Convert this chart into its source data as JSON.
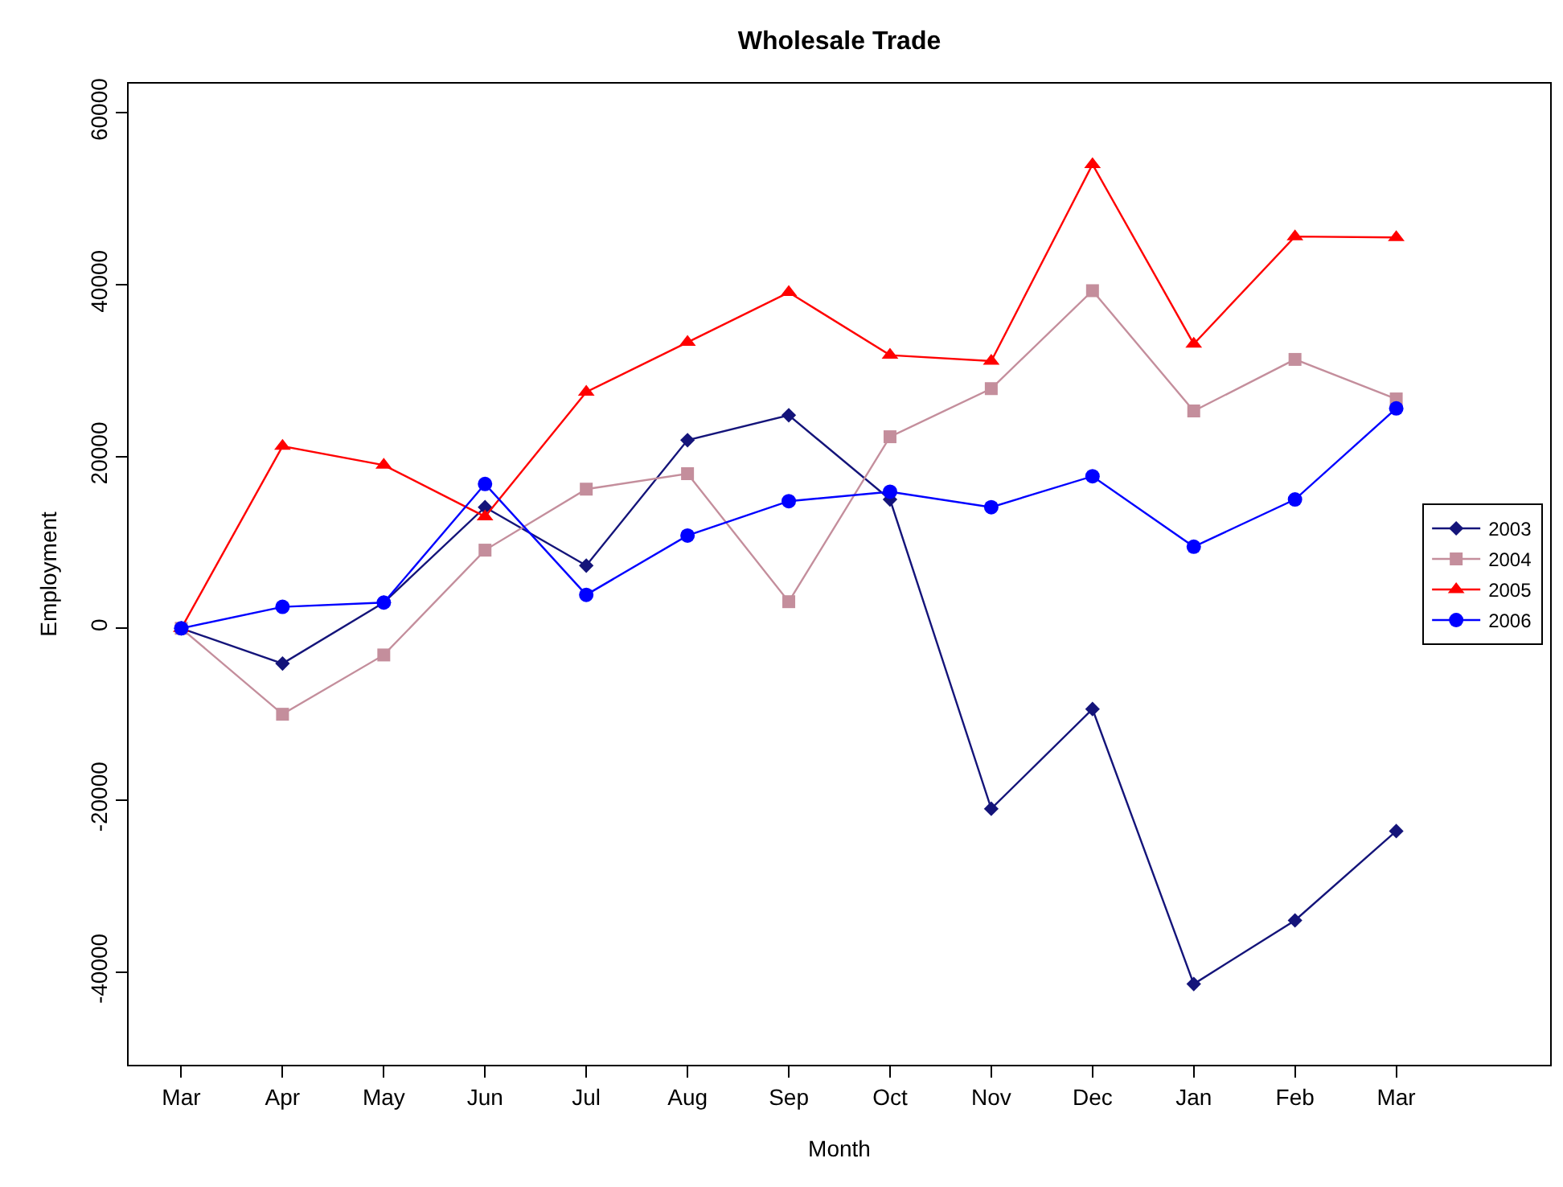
{
  "chart_data": {
    "type": "line",
    "title": "Wholesale Trade",
    "xlabel": "Month",
    "ylabel": "Employment",
    "categories": [
      "Mar",
      "Apr",
      "May",
      "Jun",
      "Jul",
      "Aug",
      "Sep",
      "Oct",
      "Nov",
      "Dec",
      "Jan",
      "Feb",
      "Mar"
    ],
    "series": [
      {
        "name": "2003",
        "color": "#14147a",
        "marker": "diamond",
        "values": [
          0,
          -4100,
          3000,
          14100,
          7300,
          21900,
          24800,
          15000,
          -21000,
          -9400,
          -41400,
          -34000,
          -23600
        ]
      },
      {
        "name": "2004",
        "color": "#c48e9c",
        "marker": "square",
        "values": [
          0,
          -10000,
          -3100,
          9100,
          16200,
          18000,
          3100,
          22300,
          27900,
          39300,
          25300,
          31300,
          26700
        ]
      },
      {
        "name": "2005",
        "color": "#ff0000",
        "marker": "triangle",
        "values": [
          0,
          21200,
          19000,
          13000,
          27500,
          33300,
          39100,
          31800,
          31100,
          54000,
          33100,
          45600,
          45500
        ]
      },
      {
        "name": "2006",
        "color": "#0000ff",
        "marker": "circle",
        "values": [
          0,
          2500,
          3000,
          16800,
          3900,
          10800,
          14800,
          15900,
          14100,
          17700,
          9500,
          15000,
          25600
        ]
      }
    ],
    "ylim": [
      -50800,
      63400
    ],
    "yticks": [
      -40000,
      -20000,
      0,
      20000,
      40000,
      60000
    ],
    "grid": false,
    "legend": "right",
    "line_style": "solid"
  }
}
